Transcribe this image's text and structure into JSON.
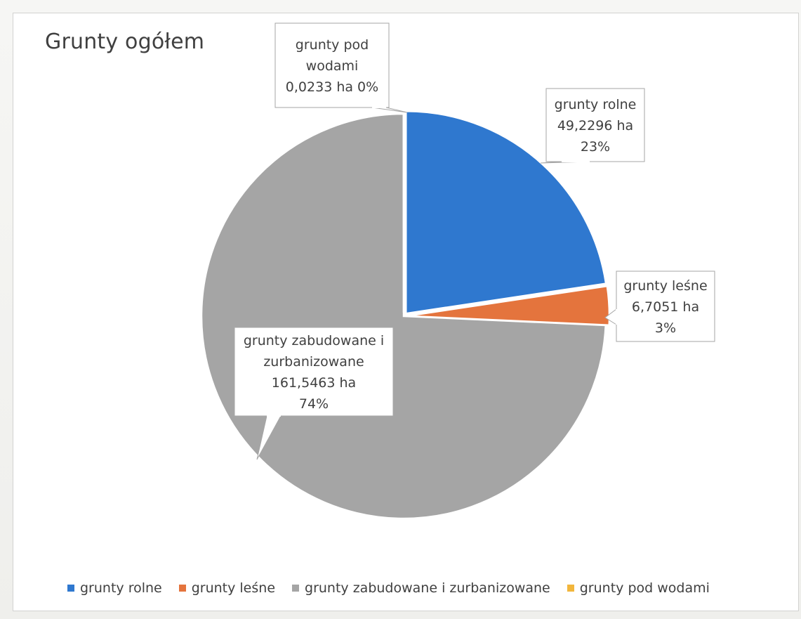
{
  "chart_data": {
    "type": "pie",
    "title": "Grunty ogółem",
    "categories": [
      "grunty rolne",
      "grunty leśne",
      "grunty zabudowane i zurbanizowane",
      "grunty pod wodami"
    ],
    "values": [
      49.2296,
      6.7051,
      161.5463,
      0.0233
    ],
    "unit": "ha",
    "colors": [
      "#2f78cf",
      "#e4743d",
      "#a5a5a5",
      "#f2b63c"
    ],
    "labels": [
      {
        "lines": [
          "grunty rolne",
          "49,2296 ha",
          "23%"
        ]
      },
      {
        "lines": [
          "grunty leśne",
          "6,7051 ha",
          "3%"
        ]
      },
      {
        "lines": [
          "grunty zabudowane i",
          "zurbanizowane",
          "161,5463 ha",
          "74%"
        ]
      },
      {
        "lines": [
          "grunty pod",
          "wodami",
          "0,0233 ha 0%"
        ]
      }
    ],
    "legend": {
      "position": "bottom",
      "items": [
        "grunty rolne",
        "grunty leśne",
        "grunty zabudowane i zurbanizowane",
        "grunty pod wodami"
      ]
    }
  }
}
